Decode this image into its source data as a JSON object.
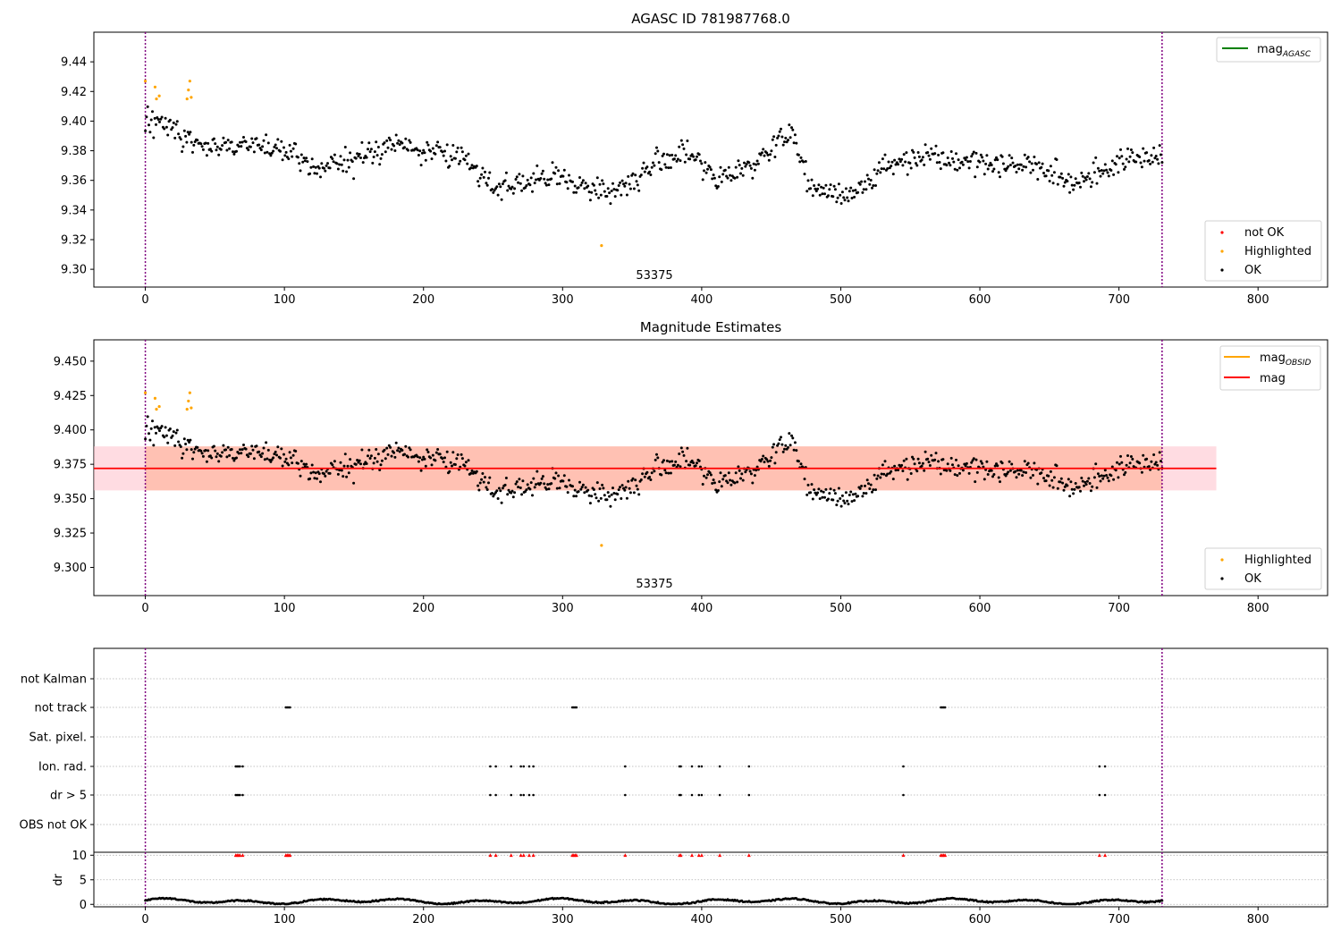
{
  "chart_data": [
    {
      "type": "scatter",
      "title": "AGASC ID 781987768.0",
      "xlim": [
        -37,
        850
      ],
      "ylim": [
        9.288,
        9.46
      ],
      "xticks": [
        0,
        100,
        200,
        300,
        400,
        500,
        600,
        700,
        800
      ],
      "yticks": [
        "9.30",
        "9.32",
        "9.34",
        "9.36",
        "9.38",
        "9.40",
        "9.42",
        "9.44"
      ],
      "vlines": [
        0,
        731
      ],
      "annotation": {
        "text": "53375",
        "x": 365,
        "y": 9.294
      },
      "legend_upper": [
        {
          "name": "mag",
          "sub": "AGASC",
          "color": "#008000"
        }
      ],
      "legend_lower": [
        {
          "name": "not OK",
          "color": "#ff0000"
        },
        {
          "name": "Highlighted",
          "color": "#ffa500"
        },
        {
          "name": "OK",
          "color": "#000000"
        }
      ],
      "highlighted": [
        [
          0,
          9.427
        ],
        [
          7,
          9.423
        ],
        [
          8,
          9.415
        ],
        [
          10,
          9.417
        ],
        [
          30,
          9.415
        ],
        [
          31,
          9.421
        ],
        [
          32,
          9.427
        ],
        [
          33,
          9.416
        ],
        [
          328,
          9.316
        ]
      ],
      "ok_points": "generated"
    },
    {
      "type": "scatter",
      "title": "Magnitude Estimates",
      "xlim": [
        -37,
        850
      ],
      "ylim": [
        9.2795,
        9.4655
      ],
      "xticks": [
        0,
        100,
        200,
        300,
        400,
        500,
        600,
        700,
        800
      ],
      "yticks": [
        "9.300",
        "9.325",
        "9.350",
        "9.375",
        "9.400",
        "9.425",
        "9.450"
      ],
      "vlines": [
        0,
        731
      ],
      "mean_mag": 9.372,
      "band_obsid": [
        9.356,
        9.388
      ],
      "band_mag": [
        9.356,
        9.388
      ],
      "annotation": {
        "text": "53375",
        "x": 365,
        "y": 9.284
      },
      "legend_upper": [
        {
          "name": "mag",
          "sub": "OBSID",
          "color": "#ffa500"
        },
        {
          "name": "mag",
          "sub": "",
          "color": "#ff0000"
        }
      ],
      "legend_lower": [
        {
          "name": "Highlighted",
          "color": "#ffa500"
        },
        {
          "name": "OK",
          "color": "#000000"
        }
      ]
    },
    {
      "type": "scatter",
      "title": "",
      "flags": [
        "not Kalman",
        "not track",
        "Sat. pixel.",
        "Ion. rad.",
        "dr > 5",
        "OBS not OK"
      ],
      "flag_points": {
        "not track": [
          101,
          102,
          103,
          104,
          307,
          308,
          309,
          310,
          572,
          573,
          574,
          575
        ],
        "Ion. rad.": [
          65,
          66,
          67,
          68,
          70,
          248,
          252,
          263,
          270,
          272,
          276,
          279,
          345,
          384,
          385,
          393,
          398,
          400,
          413,
          434,
          545,
          686,
          690
        ],
        "dr > 5": [
          65,
          66,
          67,
          68,
          70,
          248,
          252,
          263,
          270,
          272,
          276,
          279,
          345,
          384,
          385,
          393,
          398,
          400,
          413,
          434,
          545,
          686,
          690
        ]
      }
    },
    {
      "type": "scatter",
      "title": "",
      "ylabel": "dr",
      "xlim": [
        -37,
        850
      ],
      "ylim": [
        -0.5,
        10.6
      ],
      "xticks": [
        0,
        100,
        200,
        300,
        400,
        500,
        600,
        700,
        800
      ],
      "yticks": [
        "0",
        "5",
        "10"
      ],
      "capped_points": [
        65,
        66,
        67,
        68,
        70,
        101,
        102,
        103,
        104,
        248,
        252,
        263,
        270,
        272,
        276,
        279,
        307,
        308,
        309,
        310,
        345,
        384,
        385,
        393,
        398,
        400,
        413,
        434,
        545,
        572,
        573,
        574,
        575,
        686,
        690
      ]
    }
  ],
  "colors": {
    "ok": "#000000",
    "highlighted": "#ffa500",
    "not_ok": "#ff0000",
    "vline": "#800080",
    "mean": "#ff0000",
    "band_obsid": "#ffa07a",
    "band_mag": "#ffc0cb",
    "grid": "#b0b0b0"
  }
}
